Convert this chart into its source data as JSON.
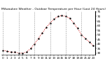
{
  "title": "Milwaukee Weather - Outdoor Temperature per Hour (Last 24 Hours)",
  "hours": [
    0,
    1,
    2,
    3,
    4,
    5,
    6,
    7,
    8,
    9,
    10,
    11,
    12,
    13,
    14,
    15,
    16,
    17,
    18,
    19,
    20,
    21,
    22,
    23
  ],
  "temps": [
    33,
    32,
    31,
    31,
    30,
    30,
    31,
    35,
    40,
    46,
    52,
    58,
    63,
    67,
    70,
    71,
    70,
    68,
    63,
    57,
    50,
    46,
    42,
    38
  ],
  "line_color": "#cc0000",
  "marker_color": "#000000",
  "bg_color": "#ffffff",
  "plot_bg": "#ffffff",
  "grid_color": "#888888",
  "ylim": [
    28,
    76
  ],
  "yticks": [
    30,
    35,
    40,
    45,
    50,
    55,
    60,
    65,
    70,
    75
  ],
  "title_fontsize": 3.2,
  "tick_fontsize": 3.0
}
